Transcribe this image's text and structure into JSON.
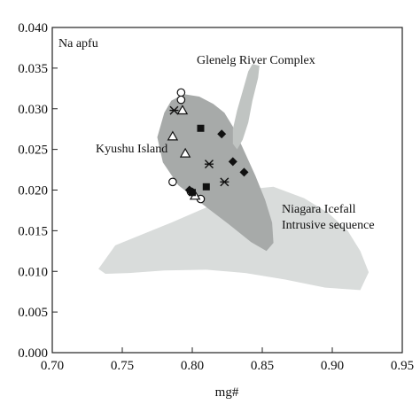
{
  "chart_data": {
    "type": "scatter",
    "xlabel": "mg#",
    "ylabel": "",
    "xlim": [
      0.7,
      0.95
    ],
    "ylim": [
      0.0,
      0.04
    ],
    "x_ticks": [
      {
        "value": 0.7,
        "label": "0.70"
      },
      {
        "value": 0.75,
        "label": "0.75"
      },
      {
        "value": 0.8,
        "label": "0.80"
      },
      {
        "value": 0.85,
        "label": "0.85"
      },
      {
        "value": 0.9,
        "label": "0.90"
      },
      {
        "value": 0.95,
        "label": "0.95"
      }
    ],
    "y_ticks": [
      {
        "value": 0.0,
        "label": "0.000"
      },
      {
        "value": 0.005,
        "label": "0.005"
      },
      {
        "value": 0.01,
        "label": "0.010"
      },
      {
        "value": 0.015,
        "label": "0.015"
      },
      {
        "value": 0.02,
        "label": "0.020"
      },
      {
        "value": 0.025,
        "label": "0.025"
      },
      {
        "value": 0.03,
        "label": "0.030"
      },
      {
        "value": 0.035,
        "label": "0.035"
      },
      {
        "value": 0.04,
        "label": "0.040"
      }
    ],
    "grid": false,
    "annotations": {
      "panel_label": "Na apfu",
      "glenelg": "Glenelg River Complex",
      "kyushu": "Kyushu Island",
      "niagara_line1": "Niagara Icefall",
      "niagara_line2": "Intrusive sequence"
    },
    "fields": [
      {
        "label_key": "niagara",
        "color": "#d9dcdb",
        "points": [
          [
            0.733,
            0.0103
          ],
          [
            0.745,
            0.0132
          ],
          [
            0.785,
            0.016
          ],
          [
            0.84,
            0.0201
          ],
          [
            0.858,
            0.0204
          ],
          [
            0.88,
            0.019
          ],
          [
            0.897,
            0.0172
          ],
          [
            0.911,
            0.015
          ],
          [
            0.92,
            0.0125
          ],
          [
            0.926,
            0.0099
          ],
          [
            0.92,
            0.0077
          ],
          [
            0.895,
            0.008
          ],
          [
            0.866,
            0.009
          ],
          [
            0.838,
            0.0098
          ],
          [
            0.81,
            0.0102
          ],
          [
            0.78,
            0.0101
          ],
          [
            0.755,
            0.0098
          ],
          [
            0.738,
            0.0097
          ]
        ]
      },
      {
        "label_key": "kyushu",
        "color": "#a7aaa9",
        "points": [
          [
            0.78,
            0.0295
          ],
          [
            0.785,
            0.031
          ],
          [
            0.794,
            0.0318
          ],
          [
            0.805,
            0.0315
          ],
          [
            0.815,
            0.0306
          ],
          [
            0.823,
            0.0295
          ],
          [
            0.829,
            0.0278
          ],
          [
            0.836,
            0.0252
          ],
          [
            0.845,
            0.0218
          ],
          [
            0.852,
            0.0188
          ],
          [
            0.857,
            0.016
          ],
          [
            0.858,
            0.0135
          ],
          [
            0.853,
            0.0125
          ],
          [
            0.842,
            0.0136
          ],
          [
            0.826,
            0.0158
          ],
          [
            0.807,
            0.0183
          ],
          [
            0.79,
            0.0206
          ],
          [
            0.779,
            0.0234
          ],
          [
            0.775,
            0.0265
          ]
        ]
      },
      {
        "label_key": "glenelg",
        "color": "#c0c4c2",
        "points": [
          [
            0.829,
            0.0257
          ],
          [
            0.829,
            0.0275
          ],
          [
            0.832,
            0.0298
          ],
          [
            0.836,
            0.0322
          ],
          [
            0.84,
            0.0346
          ],
          [
            0.843,
            0.0355
          ],
          [
            0.848,
            0.0353
          ],
          [
            0.847,
            0.0338
          ],
          [
            0.843,
            0.031
          ],
          [
            0.84,
            0.0283
          ],
          [
            0.836,
            0.0262
          ],
          [
            0.832,
            0.025
          ]
        ]
      }
    ],
    "series": [
      {
        "marker": "open-circle",
        "points": [
          [
            0.792,
            0.032
          ],
          [
            0.792,
            0.0311
          ],
          [
            0.786,
            0.021
          ],
          [
            0.799,
            0.0198
          ],
          [
            0.806,
            0.0189
          ]
        ]
      },
      {
        "marker": "open-triangle",
        "points": [
          [
            0.793,
            0.0298
          ],
          [
            0.786,
            0.0266
          ],
          [
            0.795,
            0.0245
          ],
          [
            0.802,
            0.0193
          ]
        ]
      },
      {
        "marker": "asterisk",
        "points": [
          [
            0.787,
            0.0298
          ],
          [
            0.812,
            0.0232
          ],
          [
            0.823,
            0.021
          ]
        ]
      },
      {
        "marker": "filled-square",
        "points": [
          [
            0.806,
            0.0276
          ],
          [
            0.81,
            0.0204
          ],
          [
            0.8,
            0.0197
          ]
        ]
      },
      {
        "marker": "filled-diamond",
        "points": [
          [
            0.821,
            0.0269
          ],
          [
            0.829,
            0.0235
          ],
          [
            0.837,
            0.0222
          ],
          [
            0.798,
            0.02
          ]
        ]
      }
    ]
  }
}
